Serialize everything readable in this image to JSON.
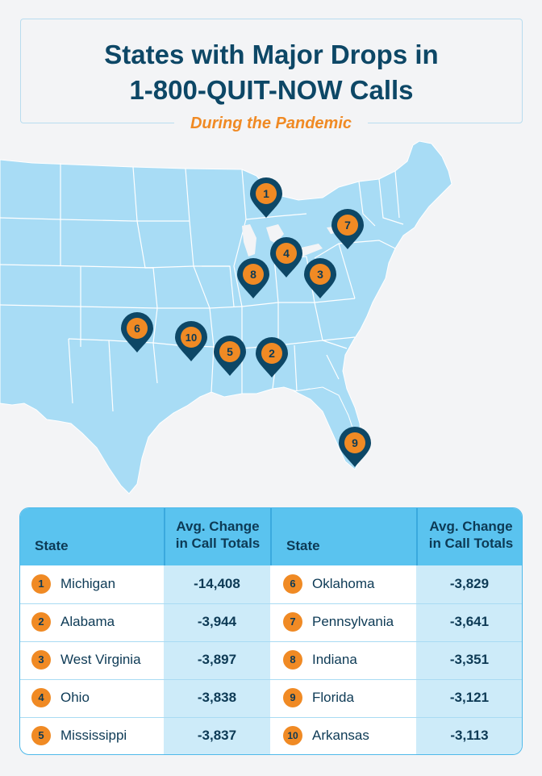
{
  "header": {
    "title": "States with Major Drops in\n1-800-QUIT-NOW Calls",
    "subtitle": "During the Pandemic"
  },
  "map": {
    "land_color": "#a8dcf5",
    "border_color": "#ffffff",
    "pin_color": "#0d4766",
    "pin_badge_color": "#f08a24",
    "pins": [
      {
        "rank": "1",
        "state": "Michigan"
      },
      {
        "rank": "2",
        "state": "Alabama"
      },
      {
        "rank": "3",
        "state": "West Virginia"
      },
      {
        "rank": "4",
        "state": "Ohio"
      },
      {
        "rank": "5",
        "state": "Mississippi"
      },
      {
        "rank": "6",
        "state": "Oklahoma"
      },
      {
        "rank": "7",
        "state": "Pennsylvania"
      },
      {
        "rank": "8",
        "state": "Indiana"
      },
      {
        "rank": "9",
        "state": "Florida"
      },
      {
        "rank": "10",
        "state": "Arkansas"
      }
    ]
  },
  "table": {
    "col_state": "State",
    "col_value": "Avg. Change\nin Call Totals",
    "left_rows": [
      {
        "rank": "1",
        "state": "Michigan",
        "value": "-14,408"
      },
      {
        "rank": "2",
        "state": "Alabama",
        "value": "-3,944"
      },
      {
        "rank": "3",
        "state": "West Virginia",
        "value": "-3,897"
      },
      {
        "rank": "4",
        "state": "Ohio",
        "value": "-3,838"
      },
      {
        "rank": "5",
        "state": "Mississippi",
        "value": "-3,837"
      }
    ],
    "right_rows": [
      {
        "rank": "6",
        "state": "Oklahoma",
        "value": "-3,829"
      },
      {
        "rank": "7",
        "state": "Pennsylvania",
        "value": "-3,641"
      },
      {
        "rank": "8",
        "state": "Indiana",
        "value": "-3,351"
      },
      {
        "rank": "9",
        "state": "Florida",
        "value": "-3,121"
      },
      {
        "rank": "10",
        "state": "Arkansas",
        "value": "-3,113"
      }
    ]
  }
}
